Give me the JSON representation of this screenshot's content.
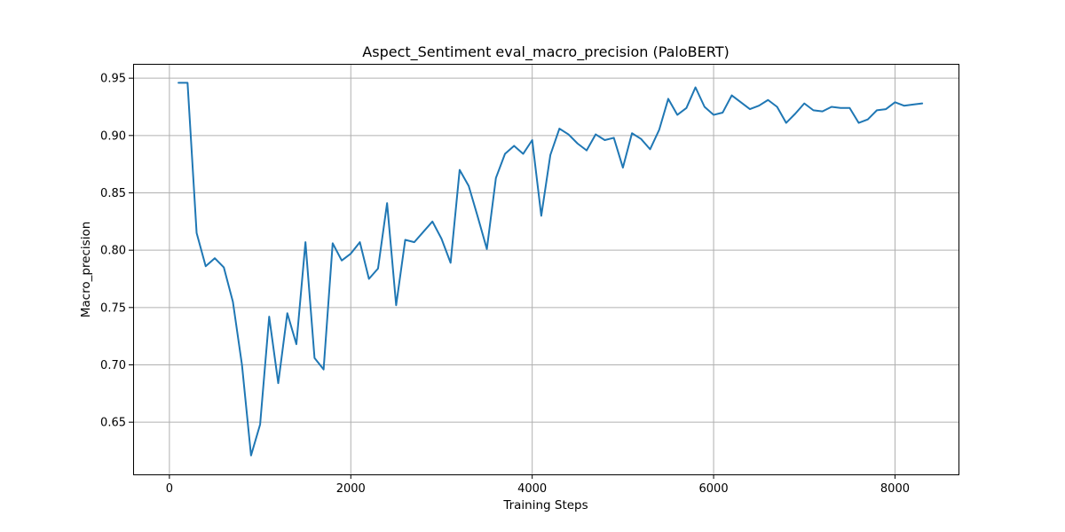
{
  "chart_data": {
    "type": "line",
    "title": "Aspect_Sentiment eval_macro_precision (PaloBERT)",
    "xlabel": "Training Steps",
    "ylabel": "Macro_precision",
    "xlim": [
      -400,
      8700
    ],
    "ylim": [
      0.6045,
      0.9625
    ],
    "xticks": [
      0,
      2000,
      4000,
      6000,
      8000
    ],
    "xtick_labels": [
      "0",
      "2000",
      "4000",
      "6000",
      "8000"
    ],
    "yticks": [
      0.65,
      0.7,
      0.75,
      0.8,
      0.85,
      0.9,
      0.95
    ],
    "ytick_labels": [
      "0.65",
      "0.70",
      "0.75",
      "0.80",
      "0.85",
      "0.90",
      "0.95"
    ],
    "grid": true,
    "series": [
      {
        "color": "#1f77b4",
        "x": [
          100,
          200,
          300,
          400,
          500,
          600,
          700,
          800,
          900,
          1000,
          1100,
          1200,
          1300,
          1400,
          1500,
          1600,
          1700,
          1800,
          1900,
          2000,
          2100,
          2200,
          2300,
          2400,
          2500,
          2600,
          2700,
          2800,
          2900,
          3000,
          3100,
          3200,
          3300,
          3400,
          3500,
          3600,
          3700,
          3800,
          3900,
          4000,
          4100,
          4200,
          4300,
          4400,
          4500,
          4600,
          4700,
          4800,
          4900,
          5000,
          5100,
          5200,
          5300,
          5400,
          5500,
          5600,
          5700,
          5800,
          5900,
          6000,
          6100,
          6200,
          6300,
          6400,
          6500,
          6600,
          6700,
          6800,
          6900,
          7000,
          7100,
          7200,
          7300,
          7400,
          7500,
          7600,
          7700,
          7800,
          7900,
          8000,
          8100,
          8200,
          8300
        ],
        "y": [
          0.946,
          0.946,
          0.815,
          0.786,
          0.793,
          0.785,
          0.755,
          0.7,
          0.621,
          0.648,
          0.742,
          0.684,
          0.745,
          0.718,
          0.807,
          0.706,
          0.696,
          0.806,
          0.791,
          0.797,
          0.807,
          0.775,
          0.784,
          0.841,
          0.752,
          0.809,
          0.807,
          0.816,
          0.825,
          0.81,
          0.789,
          0.87,
          0.856,
          0.829,
          0.801,
          0.863,
          0.884,
          0.891,
          0.884,
          0.896,
          0.83,
          0.883,
          0.906,
          0.901,
          0.893,
          0.887,
          0.901,
          0.896,
          0.898,
          0.872,
          0.902,
          0.897,
          0.888,
          0.905,
          0.932,
          0.918,
          0.924,
          0.942,
          0.925,
          0.918,
          0.92,
          0.935,
          0.929,
          0.923,
          0.926,
          0.931,
          0.925,
          0.911,
          0.919,
          0.928,
          0.922,
          0.921,
          0.925,
          0.924,
          0.924,
          0.911,
          0.914,
          0.922,
          0.923,
          0.929,
          0.926,
          0.927,
          0.928
        ]
      }
    ]
  }
}
